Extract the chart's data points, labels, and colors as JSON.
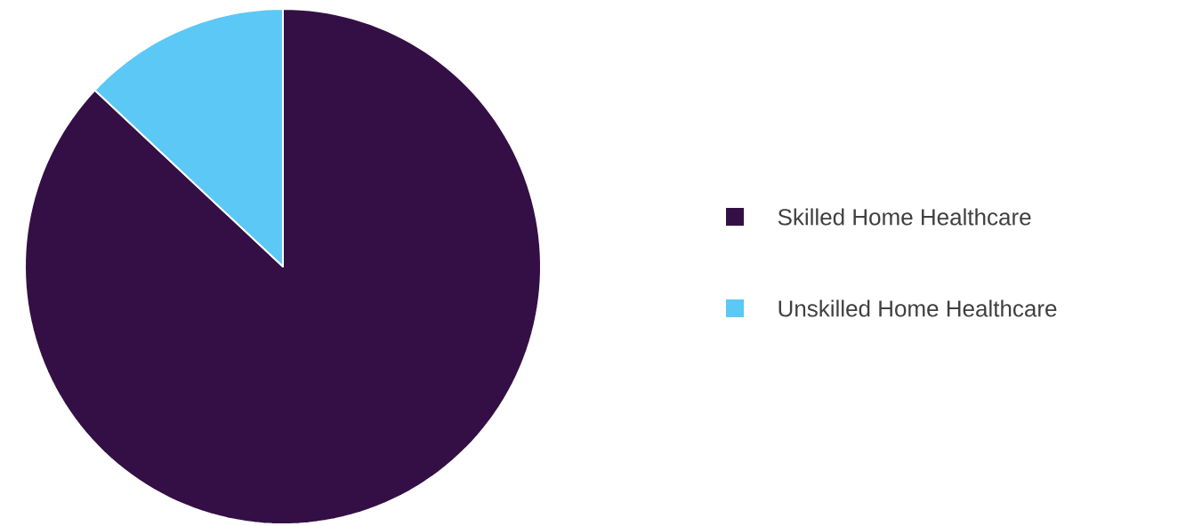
{
  "chart_data": {
    "type": "pie",
    "categories": [
      "Skilled Home Healthcare",
      "Unskilled Home Healthcare"
    ],
    "values": [
      87,
      13
    ],
    "colors": [
      "#340f45",
      "#5bc8f5"
    ],
    "legend": "right"
  }
}
